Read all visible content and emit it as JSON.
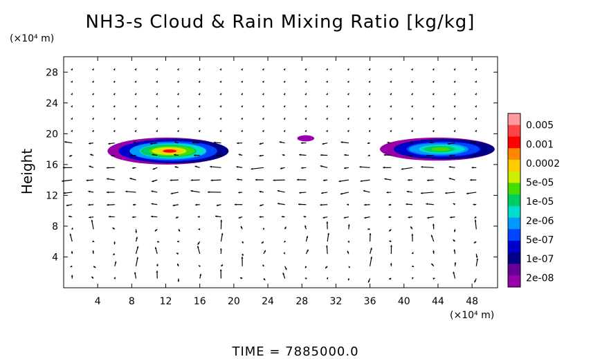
{
  "chart_data": {
    "type": "heatmap",
    "title": "NH3-s Cloud & Rain Mixing Ratio [kg/kg]",
    "ylabel": "Height",
    "x_unit_label": "(×10⁴ m)",
    "y_unit_label": "(×10⁴ m)",
    "footer": "TIME  =  7885000.0",
    "xlim": [
      0,
      51
    ],
    "ylim": [
      0,
      30
    ],
    "x_ticks": [
      4,
      8,
      12,
      16,
      20,
      24,
      28,
      32,
      36,
      40,
      44,
      48
    ],
    "y_ticks": [
      4,
      8,
      12,
      16,
      20,
      24,
      28
    ],
    "colorbar": {
      "labels": [
        "0.005",
        "0.001",
        "0.0002",
        "5e-05",
        "1e-05",
        "2e-06",
        "5e-07",
        "1e-07",
        "2e-08"
      ],
      "colors": [
        "#ff9aa0",
        "#ff4444",
        "#ff0000",
        "#ff8800",
        "#ffcc00",
        "#ccee00",
        "#44dd00",
        "#00cc66",
        "#00ddcc",
        "#0099ff",
        "#0044ff",
        "#0000cc",
        "#000088",
        "#660099",
        "#9900aa"
      ]
    },
    "cloud_regions": [
      {
        "x": [
          5.5,
          19.5
        ],
        "y": [
          16.0,
          19.5
        ],
        "peak": "0.0002"
      },
      {
        "x": [
          27.5,
          29.5
        ],
        "y": [
          19.0,
          19.8
        ],
        "peak": "2e-08"
      },
      {
        "x": [
          37.5,
          51.0
        ],
        "y": [
          16.5,
          19.5
        ],
        "peak": "1e-05"
      }
    ],
    "wind_field": "arrow vectors on a regular grid"
  }
}
